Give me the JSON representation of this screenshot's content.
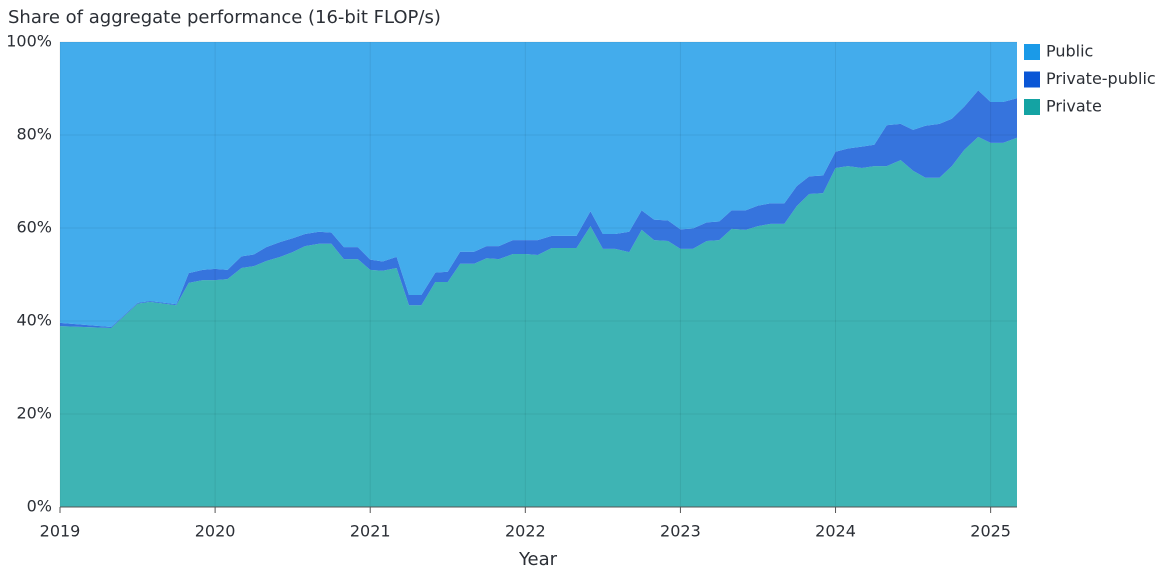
{
  "chart_data": {
    "type": "stacked_area",
    "title": "Share of aggregate performance (16-bit FLOP/s)",
    "x_label": "Year",
    "x": [
      2019.0,
      2019.33,
      2019.5,
      2019.58,
      2019.75,
      2019.83,
      2019.92,
      2020.0,
      2020.08,
      2020.17,
      2020.25,
      2020.33,
      2020.42,
      2020.5,
      2020.58,
      2020.67,
      2020.75,
      2020.83,
      2020.92,
      2021.0,
      2021.08,
      2021.17,
      2021.25,
      2021.33,
      2021.42,
      2021.5,
      2021.58,
      2021.67,
      2021.75,
      2021.83,
      2021.92,
      2022.0,
      2022.08,
      2022.17,
      2022.25,
      2022.33,
      2022.42,
      2022.5,
      2022.58,
      2022.67,
      2022.75,
      2022.83,
      2022.92,
      2023.0,
      2023.08,
      2023.17,
      2023.25,
      2023.33,
      2023.42,
      2023.5,
      2023.58,
      2023.67,
      2023.75,
      2023.83,
      2023.92,
      2024.0,
      2024.08,
      2024.17,
      2024.25,
      2024.33,
      2024.42,
      2024.5,
      2024.58,
      2024.67,
      2024.75,
      2024.83,
      2024.92,
      2025.0,
      2025.08,
      2025.17
    ],
    "series": [
      {
        "name": "Public",
        "color": "#1a9ae8",
        "values": [
          60.4,
          61.3,
          56.1,
          55.7,
          56.4,
          49.7,
          49.0,
          48.8,
          49.0,
          46.1,
          45.7,
          44.1,
          43.0,
          42.2,
          41.3,
          40.8,
          41.0,
          44.1,
          44.1,
          46.8,
          47.2,
          46.2,
          54.4,
          54.4,
          49.6,
          49.4,
          45.1,
          45.1,
          43.9,
          43.9,
          42.6,
          42.6,
          42.6,
          41.7,
          41.7,
          41.7,
          36.4,
          41.3,
          41.3,
          40.8,
          36.2,
          38.2,
          38.4,
          40.3,
          40.1,
          38.8,
          38.6,
          36.2,
          36.2,
          35.2,
          34.7,
          34.7,
          31.0,
          28.9,
          28.7,
          23.6,
          22.9,
          22.5,
          22.1,
          17.9,
          17.6,
          18.9,
          18.0,
          17.6,
          16.5,
          13.9,
          10.4,
          12.9,
          12.9,
          12.1
        ]
      },
      {
        "name": "Private-public",
        "color": "#0a56d6",
        "values": [
          0.7,
          0.2,
          0.2,
          0.2,
          0.2,
          2.1,
          2.2,
          2.4,
          2.0,
          2.5,
          2.5,
          3.0,
          3.2,
          3.0,
          2.6,
          2.6,
          2.4,
          2.6,
          2.6,
          2.2,
          2.0,
          2.4,
          2.2,
          2.2,
          2.0,
          2.2,
          2.6,
          2.6,
          2.6,
          2.8,
          3.0,
          3.0,
          3.2,
          2.6,
          2.6,
          2.6,
          3.2,
          3.2,
          3.2,
          4.4,
          4.2,
          4.4,
          4.4,
          4.2,
          4.4,
          4.0,
          4.0,
          4.0,
          4.2,
          4.4,
          4.4,
          4.4,
          4.3,
          3.8,
          3.8,
          3.5,
          3.8,
          4.6,
          4.6,
          8.8,
          7.8,
          8.8,
          11.2,
          11.6,
          10.2,
          9.3,
          10.0,
          8.8,
          8.8,
          8.5
        ]
      },
      {
        "name": "Private",
        "color": "#14a3a3",
        "values": [
          38.9,
          38.5,
          43.7,
          44.1,
          43.4,
          48.2,
          48.8,
          48.8,
          49.0,
          51.4,
          51.8,
          52.9,
          53.8,
          54.8,
          56.1,
          56.6,
          56.6,
          53.3,
          53.3,
          51.0,
          50.8,
          51.4,
          43.4,
          43.4,
          48.4,
          48.4,
          52.3,
          52.3,
          53.5,
          53.3,
          54.4,
          54.4,
          54.2,
          55.7,
          55.7,
          55.7,
          60.4,
          55.5,
          55.5,
          54.8,
          59.6,
          57.4,
          57.2,
          55.5,
          55.5,
          57.2,
          57.4,
          59.8,
          59.6,
          60.4,
          60.9,
          60.9,
          64.7,
          67.3,
          67.5,
          72.9,
          73.3,
          72.9,
          73.3,
          73.3,
          74.6,
          72.3,
          70.8,
          70.8,
          73.3,
          76.8,
          79.6,
          78.3,
          78.3,
          79.4
        ]
      }
    ],
    "xlim": [
      2019,
      2025.17
    ],
    "xticks": [
      2019,
      2020,
      2021,
      2022,
      2023,
      2024,
      2025
    ],
    "ylim": [
      0,
      100
    ],
    "yticks": [
      {
        "value": 0,
        "label": "0%"
      },
      {
        "value": 20,
        "label": "20%"
      },
      {
        "value": 40,
        "label": "40%"
      },
      {
        "value": 60,
        "label": "60%"
      },
      {
        "value": 80,
        "label": "80%"
      },
      {
        "value": 100,
        "label": "100%"
      }
    ],
    "grid": true,
    "legend": "right"
  }
}
